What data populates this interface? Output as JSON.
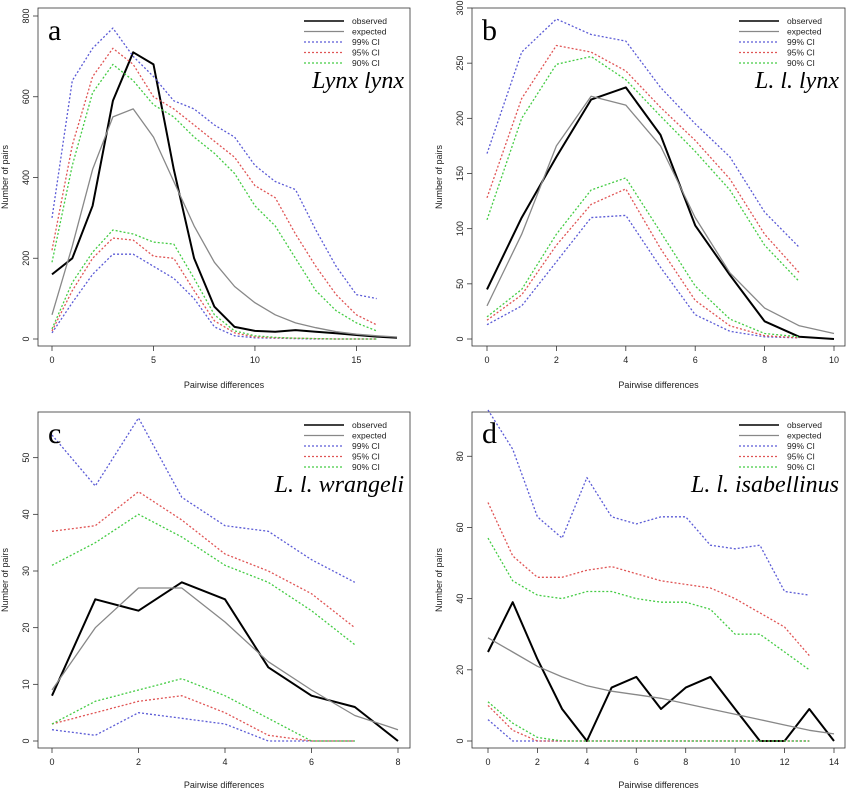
{
  "styles": {
    "observed": {
      "color": "#000000",
      "width": 2.0,
      "dash": ""
    },
    "expected": {
      "color": "#888888",
      "width": 1.3,
      "dash": ""
    },
    "99% CI": {
      "color": "#5b5bd6",
      "width": 1.3,
      "dash": "2,2"
    },
    "95% CI": {
      "color": "#e05555",
      "width": 1.3,
      "dash": "2,2"
    },
    "90% CI": {
      "color": "#44cc44",
      "width": 1.3,
      "dash": "2,2"
    }
  },
  "chart_data": [
    {
      "type": "line",
      "panel": "a",
      "title": "Lynx lynx",
      "xlabel": "Pairwise differences",
      "ylabel": "Number of pairs",
      "xlim": [
        0,
        17
      ],
      "ylim": [
        0,
        800
      ],
      "xticks": [
        0,
        5,
        10,
        15
      ],
      "yticks": [
        0,
        200,
        400,
        600,
        800
      ],
      "legend": [
        "observed",
        "expected",
        "99% CI",
        "95% CI",
        "90% CI"
      ],
      "legend_position": "top-right",
      "series": [
        {
          "name": "observed",
          "x": [
            0,
            1,
            2,
            3,
            4,
            5,
            6,
            7,
            8,
            9,
            10,
            11,
            12,
            13,
            14,
            15,
            16,
            17
          ],
          "y": [
            160,
            200,
            330,
            590,
            710,
            680,
            420,
            200,
            80,
            30,
            20,
            18,
            22,
            18,
            14,
            10,
            6,
            3
          ]
        },
        {
          "name": "expected",
          "x": [
            0,
            1,
            2,
            3,
            4,
            5,
            6,
            7,
            8,
            9,
            10,
            11,
            12,
            13,
            14,
            15,
            16,
            17
          ],
          "y": [
            60,
            230,
            420,
            550,
            570,
            500,
            390,
            280,
            190,
            130,
            90,
            60,
            40,
            28,
            18,
            12,
            8,
            5
          ]
        },
        {
          "name": "99% CI",
          "x": [
            0,
            1,
            2,
            3,
            4,
            5,
            6,
            7,
            8,
            9,
            10,
            11,
            12,
            13,
            14,
            15,
            16
          ],
          "y": [
            300,
            640,
            720,
            770,
            700,
            650,
            590,
            570,
            530,
            500,
            430,
            390,
            370,
            270,
            180,
            110,
            100
          ]
        },
        {
          "name": "99% CI",
          "x": [
            0,
            1,
            2,
            3,
            4,
            5,
            6,
            7,
            8,
            9,
            10,
            11,
            12,
            13,
            14,
            15,
            16
          ],
          "y": [
            15,
            90,
            160,
            210,
            210,
            180,
            150,
            100,
            30,
            8,
            3,
            2,
            1,
            0,
            0,
            0,
            0
          ]
        },
        {
          "name": "95% CI",
          "x": [
            0,
            1,
            2,
            3,
            4,
            5,
            6,
            7,
            8,
            9,
            10,
            11,
            12,
            13,
            14,
            15,
            16
          ],
          "y": [
            220,
            480,
            650,
            720,
            680,
            600,
            570,
            530,
            490,
            450,
            380,
            350,
            260,
            180,
            110,
            60,
            35
          ]
        },
        {
          "name": "95% CI",
          "x": [
            0,
            1,
            2,
            3,
            4,
            5,
            6,
            7,
            8,
            9,
            10,
            11,
            12,
            13,
            14,
            15,
            16
          ],
          "y": [
            20,
            120,
            200,
            250,
            245,
            205,
            200,
            120,
            45,
            15,
            5,
            3,
            2,
            1,
            0,
            0,
            0
          ]
        },
        {
          "name": "90% CI",
          "x": [
            0,
            1,
            2,
            3,
            4,
            5,
            6,
            7,
            8,
            9,
            10,
            11,
            12,
            13,
            14,
            15,
            16
          ],
          "y": [
            190,
            430,
            610,
            680,
            640,
            580,
            550,
            500,
            460,
            410,
            330,
            280,
            200,
            120,
            70,
            40,
            20
          ]
        },
        {
          "name": "90% CI",
          "x": [
            0,
            1,
            2,
            3,
            4,
            5,
            6,
            7,
            8,
            9,
            10,
            11,
            12,
            13,
            14,
            15,
            16
          ],
          "y": [
            25,
            140,
            215,
            270,
            260,
            240,
            235,
            150,
            60,
            20,
            8,
            4,
            2,
            1,
            0,
            0,
            0
          ]
        }
      ]
    },
    {
      "type": "line",
      "panel": "b",
      "title": "L. l. lynx",
      "xlabel": "Pairwise differences",
      "ylabel": "Number of pairs",
      "xlim": [
        0,
        10
      ],
      "ylim": [
        0,
        300
      ],
      "xticks": [
        0,
        2,
        4,
        6,
        8,
        10
      ],
      "yticks": [
        0,
        50,
        100,
        150,
        200,
        250,
        300
      ],
      "legend": [
        "observed",
        "expected",
        "99% CI",
        "95% CI",
        "90% CI"
      ],
      "legend_position": "top-right",
      "series": [
        {
          "name": "observed",
          "x": [
            0,
            1,
            2,
            3,
            4,
            5,
            6,
            7,
            8,
            9,
            10
          ],
          "y": [
            45,
            110,
            165,
            217,
            228,
            185,
            103,
            58,
            16,
            2,
            0
          ]
        },
        {
          "name": "expected",
          "x": [
            0,
            1,
            2,
            3,
            4,
            5,
            6,
            7,
            8,
            9,
            10
          ],
          "y": [
            30,
            95,
            175,
            220,
            212,
            175,
            110,
            60,
            28,
            12,
            5
          ]
        },
        {
          "name": "99% CI",
          "x": [
            0,
            1,
            2,
            3,
            4,
            5,
            6,
            7,
            8,
            9
          ],
          "y": [
            168,
            260,
            290,
            276,
            270,
            228,
            195,
            165,
            115,
            83
          ]
        },
        {
          "name": "99% CI",
          "x": [
            0,
            1,
            2,
            3,
            4,
            5,
            6,
            7,
            8,
            9
          ],
          "y": [
            13,
            30,
            70,
            110,
            112,
            65,
            22,
            7,
            2,
            1
          ]
        },
        {
          "name": "95% CI",
          "x": [
            0,
            1,
            2,
            3,
            4,
            5,
            6,
            7,
            8,
            9
          ],
          "y": [
            128,
            218,
            266,
            260,
            243,
            210,
            180,
            145,
            95,
            60
          ]
        },
        {
          "name": "95% CI",
          "x": [
            0,
            1,
            2,
            3,
            4,
            5,
            6,
            7,
            8,
            9
          ],
          "y": [
            17,
            40,
            85,
            122,
            136,
            82,
            35,
            12,
            3,
            1
          ]
        },
        {
          "name": "90% CI",
          "x": [
            0,
            1,
            2,
            3,
            4,
            5,
            6,
            7,
            8,
            9
          ],
          "y": [
            108,
            200,
            249,
            256,
            235,
            202,
            170,
            135,
            85,
            52
          ]
        },
        {
          "name": "90% CI",
          "x": [
            0,
            1,
            2,
            3,
            4,
            5,
            6,
            7,
            8,
            9
          ],
          "y": [
            20,
            45,
            95,
            135,
            146,
            97,
            48,
            18,
            5,
            2
          ]
        }
      ]
    },
    {
      "type": "line",
      "panel": "c",
      "title": "L. l. wrangeli",
      "xlabel": "Pairwise differences",
      "ylabel": "Number of pairs",
      "xlim": [
        0,
        8
      ],
      "ylim": [
        0,
        57
      ],
      "xticks": [
        0,
        2,
        4,
        6,
        8
      ],
      "yticks": [
        0,
        10,
        20,
        30,
        40,
        50
      ],
      "legend": [
        "observed",
        "expected",
        "99% CI",
        "95% CI",
        "90% CI"
      ],
      "legend_position": "top-right",
      "series": [
        {
          "name": "observed",
          "x": [
            0,
            1,
            2,
            3,
            4,
            5,
            6,
            7,
            8
          ],
          "y": [
            8,
            25,
            23,
            28,
            25,
            13,
            8,
            6,
            0
          ]
        },
        {
          "name": "expected",
          "x": [
            0,
            1,
            2,
            3,
            4,
            5,
            6,
            7,
            8
          ],
          "y": [
            9,
            20,
            27,
            27,
            21,
            14,
            9,
            4.5,
            2
          ]
        },
        {
          "name": "99% CI",
          "x": [
            0,
            1,
            2,
            3,
            4,
            5,
            6,
            7
          ],
          "y": [
            54,
            45,
            57,
            43,
            38,
            37,
            32,
            28
          ]
        },
        {
          "name": "99% CI",
          "x": [
            0,
            1,
            2,
            3,
            4,
            5,
            6,
            7
          ],
          "y": [
            2,
            1,
            5,
            4,
            3,
            0,
            0,
            0
          ]
        },
        {
          "name": "95% CI",
          "x": [
            0,
            1,
            2,
            3,
            4,
            5,
            6,
            7
          ],
          "y": [
            37,
            38,
            44,
            39,
            33,
            30,
            26,
            20
          ]
        },
        {
          "name": "95% CI",
          "x": [
            0,
            1,
            2,
            3,
            4,
            5,
            6,
            7
          ],
          "y": [
            3,
            5,
            7,
            8,
            5,
            1,
            0,
            0
          ]
        },
        {
          "name": "90% CI",
          "x": [
            0,
            1,
            2,
            3,
            4,
            5,
            6,
            7
          ],
          "y": [
            31,
            35,
            40,
            36,
            31,
            28,
            23,
            17
          ]
        },
        {
          "name": "90% CI",
          "x": [
            0,
            1,
            2,
            3,
            4,
            5,
            6,
            7
          ],
          "y": [
            3,
            7,
            9,
            11,
            8,
            4,
            0,
            0
          ]
        }
      ]
    },
    {
      "type": "line",
      "panel": "d",
      "title": "L. l. isabellinus",
      "xlabel": "Pairwise differences",
      "ylabel": "Number of pairs",
      "xlim": [
        0,
        14
      ],
      "ylim": [
        0,
        93
      ],
      "xticks": [
        0,
        2,
        4,
        6,
        8,
        10,
        12,
        14
      ],
      "yticks": [
        0,
        20,
        40,
        60,
        80
      ],
      "legend": [
        "observed",
        "expected",
        "99% CI",
        "95% CI",
        "90% CI"
      ],
      "legend_position": "top-right",
      "series": [
        {
          "name": "observed",
          "x": [
            0,
            1,
            2,
            3,
            4,
            5,
            6,
            7,
            8,
            9,
            10,
            11,
            12,
            13,
            14
          ],
          "y": [
            25,
            39,
            23,
            9,
            0,
            15,
            18,
            9,
            15,
            18,
            9,
            0,
            0,
            9,
            0
          ]
        },
        {
          "name": "expected",
          "x": [
            0,
            1,
            2,
            3,
            4,
            5,
            6,
            7,
            8,
            9,
            10,
            11,
            12,
            13,
            14
          ],
          "y": [
            29,
            25,
            21,
            18,
            15.5,
            14,
            13,
            12,
            10.5,
            9,
            7.5,
            6,
            4.5,
            3,
            2
          ]
        },
        {
          "name": "99% CI",
          "x": [
            0,
            1,
            2,
            3,
            4,
            5,
            6,
            7,
            8,
            9,
            10,
            11,
            12,
            13
          ],
          "y": [
            93,
            82,
            63,
            57,
            74,
            63,
            61,
            63,
            63,
            55,
            54,
            55,
            42,
            41
          ]
        },
        {
          "name": "99% CI",
          "x": [
            0,
            1,
            2,
            3,
            4,
            5,
            6,
            7,
            8,
            9,
            10,
            11,
            12,
            13
          ],
          "y": [
            6,
            0,
            0,
            0,
            0,
            0,
            0,
            0,
            0,
            0,
            0,
            0,
            0,
            0
          ]
        },
        {
          "name": "95% CI",
          "x": [
            0,
            1,
            2,
            3,
            4,
            5,
            6,
            7,
            8,
            9,
            10,
            11,
            12,
            13
          ],
          "y": [
            67,
            52,
            46,
            46,
            48,
            49,
            47,
            45,
            44,
            43,
            40,
            36,
            32,
            24
          ]
        },
        {
          "name": "95% CI",
          "x": [
            0,
            1,
            2,
            3,
            4,
            5,
            6,
            7,
            8,
            9,
            10,
            11,
            12,
            13
          ],
          "y": [
            10,
            3,
            0,
            0,
            0,
            0,
            0,
            0,
            0,
            0,
            0,
            0,
            0,
            0
          ]
        },
        {
          "name": "90% CI",
          "x": [
            0,
            1,
            2,
            3,
            4,
            5,
            6,
            7,
            8,
            9,
            10,
            11,
            12,
            13
          ],
          "y": [
            57,
            45,
            41,
            40,
            42,
            42,
            40,
            39,
            39,
            37,
            30,
            30,
            25,
            20
          ]
        },
        {
          "name": "90% CI",
          "x": [
            0,
            1,
            2,
            3,
            4,
            5,
            6,
            7,
            8,
            9,
            10,
            11,
            12,
            13
          ],
          "y": [
            11,
            5,
            1,
            0,
            0,
            0,
            0,
            0,
            0,
            0,
            0,
            0,
            0,
            0
          ]
        }
      ]
    }
  ]
}
